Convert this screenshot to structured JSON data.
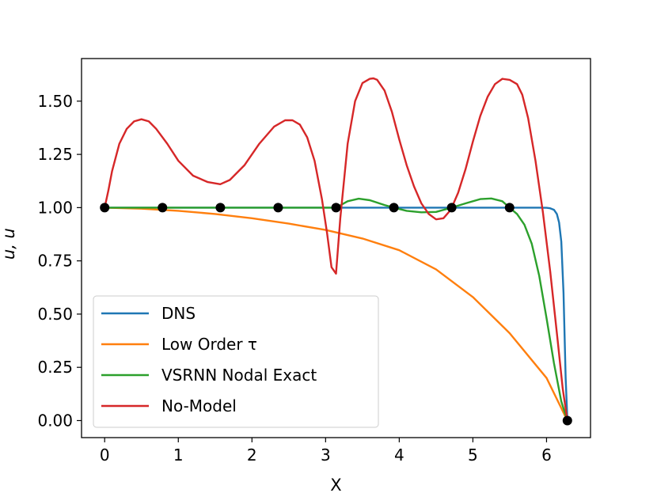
{
  "chart_data": {
    "type": "line",
    "title": "",
    "xlabel": "X",
    "ylabel": "u, u",
    "xlim": [
      -0.314,
      6.597
    ],
    "ylim": [
      -0.08,
      1.7
    ],
    "x_ticks": [
      0,
      1,
      2,
      3,
      4,
      5,
      6
    ],
    "x_tick_labels": [
      "0",
      "1",
      "2",
      "3",
      "4",
      "5",
      "6"
    ],
    "y_ticks": [
      0.0,
      0.25,
      0.5,
      0.75,
      1.0,
      1.25,
      1.5
    ],
    "y_tick_labels": [
      "0.00",
      "0.25",
      "0.50",
      "0.75",
      "1.00",
      "1.25",
      "1.50"
    ],
    "grid": false,
    "legend_position": "lower-left",
    "series": [
      {
        "name": "DNS",
        "color": "#1f77b4",
        "x": [
          0,
          0.5,
          1,
          1.5,
          2,
          2.5,
          3,
          3.5,
          4,
          4.5,
          5,
          5.5,
          5.9,
          6.0,
          6.05,
          6.1,
          6.14,
          6.17,
          6.2,
          6.23,
          6.26,
          6.283
        ],
        "y": [
          1,
          1,
          1,
          1,
          1,
          1,
          1,
          1,
          1,
          1,
          1,
          1,
          1,
          0.999,
          0.997,
          0.99,
          0.97,
          0.93,
          0.84,
          0.6,
          0.2,
          0
        ]
      },
      {
        "name": "Low Order τ",
        "color": "#ff7f0e",
        "x": [
          0,
          0.5,
          1,
          1.5,
          2,
          2.5,
          3,
          3.5,
          4,
          4.5,
          5,
          5.5,
          6,
          6.283
        ],
        "y": [
          1,
          0.995,
          0.985,
          0.97,
          0.95,
          0.925,
          0.895,
          0.855,
          0.8,
          0.71,
          0.58,
          0.41,
          0.2,
          0
        ]
      },
      {
        "name": "VSRNN Nodal Exact",
        "color": "#2ca02c",
        "x": [
          0,
          1,
          2,
          3,
          3.142,
          3.3,
          3.45,
          3.6,
          3.8,
          3.927,
          4.1,
          4.3,
          4.5,
          4.712,
          4.9,
          5.1,
          5.25,
          5.4,
          5.498,
          5.6,
          5.7,
          5.8,
          5.9,
          6.0,
          6.1,
          6.2,
          6.283
        ],
        "y": [
          1,
          1,
          1,
          1,
          1,
          1.03,
          1.042,
          1.035,
          1.012,
          1,
          0.985,
          0.978,
          0.98,
          1,
          1.02,
          1.04,
          1.043,
          1.03,
          1,
          0.97,
          0.92,
          0.83,
          0.68,
          0.48,
          0.27,
          0.09,
          0
        ]
      },
      {
        "name": "No-Model",
        "color": "#d62728",
        "x": [
          0,
          0.05,
          0.1,
          0.2,
          0.3,
          0.4,
          0.5,
          0.6,
          0.7,
          0.85,
          1.0,
          1.2,
          1.4,
          1.57,
          1.7,
          1.9,
          2.1,
          2.3,
          2.45,
          2.55,
          2.65,
          2.75,
          2.85,
          2.95,
          3.02,
          3.08,
          3.142,
          3.2,
          3.3,
          3.4,
          3.5,
          3.6,
          3.65,
          3.7,
          3.8,
          3.9,
          4.0,
          4.1,
          4.2,
          4.3,
          4.4,
          4.5,
          4.6,
          4.7,
          4.8,
          4.9,
          5.0,
          5.1,
          5.2,
          5.3,
          5.4,
          5.5,
          5.6,
          5.67,
          5.75,
          5.85,
          5.95,
          6.05,
          6.15,
          6.22,
          6.283
        ],
        "y": [
          1,
          1.08,
          1.17,
          1.3,
          1.37,
          1.405,
          1.415,
          1.405,
          1.37,
          1.3,
          1.22,
          1.15,
          1.12,
          1.11,
          1.13,
          1.2,
          1.3,
          1.38,
          1.41,
          1.41,
          1.39,
          1.33,
          1.22,
          1.04,
          0.88,
          0.72,
          0.69,
          0.95,
          1.3,
          1.5,
          1.585,
          1.605,
          1.607,
          1.6,
          1.55,
          1.45,
          1.32,
          1.2,
          1.1,
          1.02,
          0.97,
          0.945,
          0.95,
          0.99,
          1.07,
          1.18,
          1.31,
          1.43,
          1.52,
          1.58,
          1.605,
          1.6,
          1.58,
          1.53,
          1.42,
          1.22,
          0.98,
          0.7,
          0.38,
          0.15,
          0
        ]
      }
    ],
    "markers": {
      "color": "#000000",
      "x": [
        0,
        0.785,
        1.571,
        2.356,
        3.142,
        3.927,
        4.712,
        5.498,
        6.283
      ],
      "y": [
        1,
        1,
        1,
        1,
        1,
        1,
        1,
        1,
        0
      ]
    }
  }
}
